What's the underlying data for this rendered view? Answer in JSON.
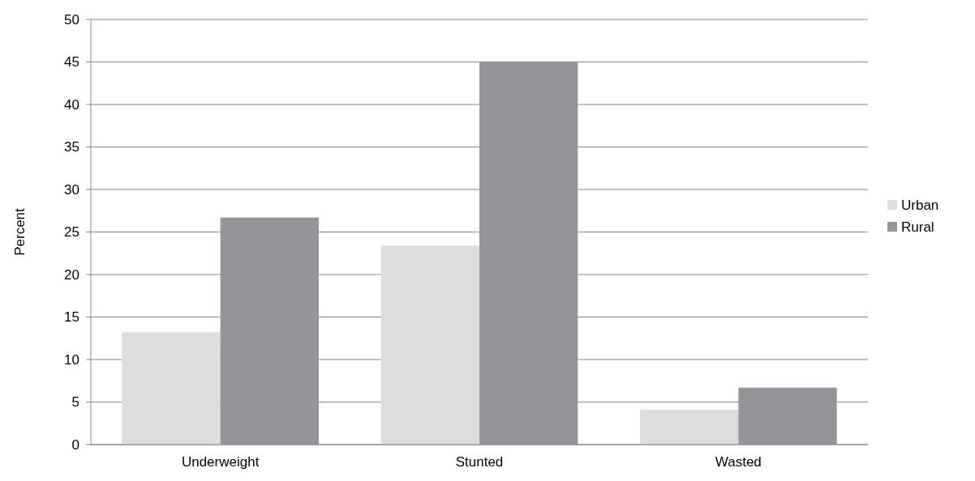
{
  "chart_data": {
    "type": "bar",
    "ylabel": "Percent",
    "categories": [
      "Underweight",
      "Stunted",
      "Wasted"
    ],
    "series": [
      {
        "name": "Urban",
        "color": "#dcdddf",
        "values": [
          13.2,
          23.4,
          4.1
        ]
      },
      {
        "name": "Rural",
        "color": "#939598",
        "values": [
          26.7,
          45,
          6.7
        ]
      }
    ],
    "ylim": [
      0,
      50
    ],
    "yticks": [
      0,
      5,
      10,
      15,
      20,
      25,
      30,
      35,
      40,
      45,
      50
    ],
    "grid": "y",
    "legend": "right"
  }
}
